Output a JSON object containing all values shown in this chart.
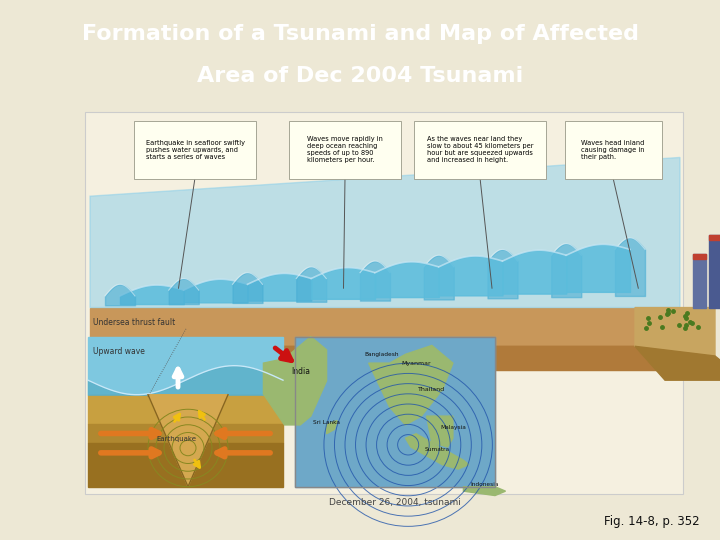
{
  "title_line1": "Formation of a Tsunami and Map of Affected",
  "title_line2": "Area of Dec 2004 Tsunami",
  "title_bg_color": "#1d3461",
  "title_text_color": "#ffffff",
  "body_bg_color": "#ede8d5",
  "fig_label": "Fig. 14-8, p. 352",
  "fig_label_color": "#111111",
  "map_caption": "December 26, 2004, tsunami",
  "figsize": [
    7.2,
    5.4
  ],
  "dpi": 100,
  "anno_texts": [
    "Earthquake in seafloor swiftly\npushes water upwards, and\nstarts a series of waves",
    "Waves move rapidly in\ndeep ocean reaching\nspeeds of up to 890\nkilometers per hour.",
    "As the waves near land they\nslow to about 45 kilometers per\nhour but are squeezed upwards\nand increased in height.",
    "Waves head inland\ncausing damage in\ntheir path."
  ]
}
